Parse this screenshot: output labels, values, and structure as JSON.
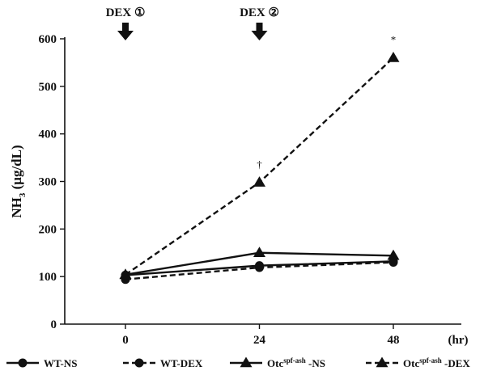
{
  "chart_data": {
    "type": "line",
    "title": "",
    "xlabel": "(hr)",
    "ylabel_main": "NH",
    "ylabel_sub": "3",
    "ylabel_rest": " (μg/dL)",
    "x": [
      0,
      24,
      48
    ],
    "x_tick_labels": [
      "0",
      "24",
      "48"
    ],
    "ylim": [
      0,
      600
    ],
    "y_ticks": [
      0,
      100,
      200,
      300,
      400,
      500,
      600
    ],
    "grid": false,
    "legend_position": "bottom",
    "series": [
      {
        "name_main": "WT-NS",
        "name_sup": "",
        "name_rest": "",
        "marker": "circle",
        "line": "solid",
        "values": [
          103,
          123,
          132
        ]
      },
      {
        "name_main": "WT-DEX",
        "name_sup": "",
        "name_rest": "",
        "marker": "circle",
        "line": "dashed",
        "values": [
          94,
          119,
          130
        ]
      },
      {
        "name_main": "Otc",
        "name_sup": "spf-ash",
        "name_rest": " -NS",
        "marker": "triangle",
        "line": "solid",
        "values": [
          104,
          150,
          144
        ]
      },
      {
        "name_main": "Otc",
        "name_sup": "spf-ash",
        "name_rest": " -DEX",
        "marker": "triangle",
        "line": "dashed",
        "values": [
          104,
          298,
          560
        ]
      }
    ],
    "annotations": [
      {
        "label": "DEX ①",
        "x": 0
      },
      {
        "label": "DEX ②",
        "x": 24
      }
    ],
    "significance": [
      {
        "symbol": "†",
        "x": 24,
        "y": 298
      },
      {
        "symbol": "*",
        "x": 48,
        "y": 560
      }
    ]
  }
}
